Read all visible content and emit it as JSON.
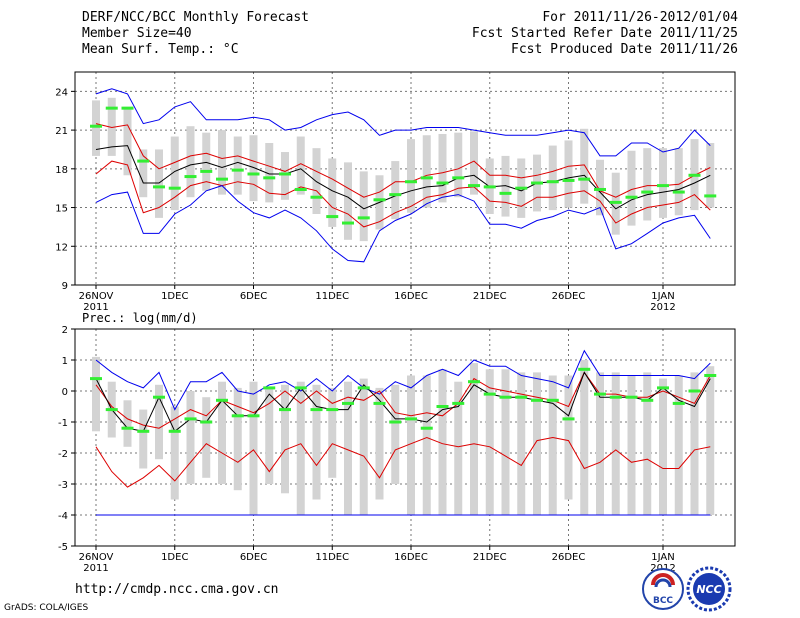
{
  "header": {
    "title": "DERF/NCC/BCC Monthly Forecast",
    "member_size": "Member Size=40",
    "variable": "Mean Surf. Temp.: °C",
    "period": "For 2011/11/26-2012/01/04",
    "fcst_started": "Fcst Started Refer Date 2011/11/25",
    "fcst_produced": "Fcst Produced Date 2011/11/26"
  },
  "footer": {
    "url": "http://cmdp.ncc.cma.gov.cn",
    "credit": "GrADS: COLA/IGES"
  },
  "logos": {
    "bcc_text": "BCC",
    "ncc_text": "NCC"
  },
  "colors": {
    "upper": "#0000ee",
    "ensemble": "#dd0000",
    "mean": "#000000",
    "box": "#d3d3d3",
    "obs": "#33ee33",
    "grid": "#777777"
  },
  "chart_data": [
    {
      "type": "line",
      "title": "Mean Surf. Temp.: °C",
      "ylim": [
        9,
        25.5
      ],
      "yticks": [
        9,
        12,
        15,
        18,
        21,
        24
      ],
      "xticks": [
        {
          "day": 0,
          "label": "26NOV",
          "sub": "2011"
        },
        {
          "day": 5,
          "label": "1DEC"
        },
        {
          "day": 10,
          "label": "6DEC"
        },
        {
          "day": 15,
          "label": "11DEC"
        },
        {
          "day": 20,
          "label": "16DEC"
        },
        {
          "day": 25,
          "label": "21DEC"
        },
        {
          "day": 30,
          "label": "26DEC"
        },
        {
          "day": 36,
          "label": "1JAN",
          "sub": "2012"
        }
      ],
      "days": 40,
      "series": [
        {
          "name": "max",
          "color": "#0000ee",
          "values": [
            23.8,
            24.2,
            23.8,
            21.5,
            21.8,
            22.8,
            23.2,
            21.8,
            21.8,
            21.8,
            22.0,
            21.8,
            21.0,
            21.2,
            21.8,
            22.2,
            22.4,
            21.8,
            20.6,
            21.0,
            21.0,
            21.2,
            21.2,
            21.2,
            21.0,
            20.8,
            20.6,
            20.6,
            20.6,
            20.8,
            21.0,
            20.8,
            19.0,
            19.0,
            20.0,
            20.0,
            19.3,
            19.6,
            21.0,
            19.8
          ]
        },
        {
          "name": "upper",
          "color": "#dd0000",
          "values": [
            21.5,
            21.2,
            21.4,
            19.0,
            18.0,
            18.5,
            19.0,
            19.2,
            18.8,
            19.0,
            18.6,
            18.2,
            17.8,
            18.4,
            17.8,
            17.2,
            16.5,
            15.8,
            16.2,
            17.0,
            17.0,
            17.5,
            17.7,
            18.0,
            18.6,
            17.5,
            17.5,
            17.3,
            17.5,
            17.8,
            18.2,
            18.3,
            16.3,
            15.8,
            16.4,
            16.7,
            16.7,
            16.8,
            17.5,
            18.1
          ]
        },
        {
          "name": "mean",
          "color": "#000000",
          "values": [
            19.5,
            19.7,
            19.8,
            16.9,
            16.9,
            17.8,
            18.3,
            18.5,
            18.1,
            18.5,
            18.1,
            17.6,
            17.6,
            18.0,
            17.0,
            16.3,
            15.8,
            14.9,
            15.4,
            15.9,
            16.3,
            16.6,
            16.7,
            17.3,
            17.5,
            16.6,
            16.7,
            16.3,
            16.9,
            17.0,
            17.3,
            17.5,
            16.2,
            14.9,
            15.6,
            16.0,
            16.2,
            16.4,
            16.9,
            17.5
          ]
        },
        {
          "name": "lower",
          "color": "#dd0000",
          "values": [
            17.6,
            18.6,
            18.3,
            14.6,
            15.0,
            15.8,
            16.7,
            17.0,
            16.7,
            17.0,
            16.8,
            16.1,
            16.0,
            16.6,
            16.3,
            15.0,
            14.5,
            13.5,
            13.9,
            14.6,
            15.1,
            15.8,
            16.0,
            16.5,
            16.6,
            15.5,
            15.4,
            15.1,
            15.8,
            15.8,
            16.1,
            16.3,
            15.5,
            13.8,
            14.5,
            15.0,
            15.2,
            15.4,
            16.0,
            14.8
          ]
        },
        {
          "name": "min",
          "color": "#0000ee",
          "values": [
            15.4,
            16.0,
            16.2,
            13.0,
            13.0,
            14.5,
            15.2,
            16.3,
            16.7,
            15.5,
            14.6,
            14.2,
            14.8,
            14.2,
            13.2,
            11.8,
            10.9,
            10.8,
            13.2,
            14.0,
            14.5,
            15.3,
            15.8,
            16.0,
            15.5,
            13.7,
            13.7,
            13.4,
            14.0,
            14.3,
            14.8,
            14.5,
            15.0,
            11.8,
            12.2,
            13.0,
            13.8,
            14.2,
            14.4,
            12.6
          ]
        }
      ],
      "box_low": [
        19.0,
        19.0,
        17.5,
        15.8,
        14.2,
        14.8,
        15.8,
        16.3,
        16.0,
        16.0,
        15.5,
        15.4,
        15.6,
        16.0,
        14.5,
        13.5,
        12.5,
        12.4,
        13.3,
        14.1,
        14.6,
        15.0,
        15.4,
        15.8,
        16.0,
        14.5,
        14.3,
        14.2,
        14.7,
        14.8,
        15.0,
        15.3,
        14.4,
        12.9,
        13.6,
        14.0,
        14.2,
        14.4,
        14.8,
        15.0
      ],
      "box_high": [
        23.3,
        23.5,
        22.8,
        19.5,
        19.5,
        20.5,
        21.3,
        20.8,
        21.0,
        20.5,
        20.6,
        20.0,
        19.3,
        20.5,
        19.6,
        18.8,
        18.5,
        17.8,
        17.5,
        18.6,
        20.3,
        20.6,
        20.7,
        20.8,
        20.9,
        18.8,
        19.0,
        18.8,
        19.1,
        19.8,
        20.2,
        21.1,
        18.7,
        17.7,
        19.4,
        19.6,
        19.6,
        19.6,
        20.3,
        20.0
      ],
      "observed": [
        21.3,
        22.7,
        22.7,
        18.6,
        16.6,
        16.5,
        17.4,
        17.8,
        17.2,
        17.9,
        17.6,
        17.3,
        17.6,
        16.4,
        15.8,
        14.3,
        13.8,
        14.2,
        15.6,
        16.0,
        17.0,
        17.3,
        16.9,
        17.3,
        16.7,
        16.6,
        16.1,
        16.5,
        16.9,
        17.0,
        17.1,
        17.2,
        16.4,
        15.4,
        15.8,
        16.2,
        16.7,
        16.2,
        17.5,
        15.9
      ]
    },
    {
      "type": "line",
      "title": "Prec.: log(mm/d)",
      "ylim": [
        -5,
        2
      ],
      "yticks": [
        -5,
        -4,
        -3,
        -2,
        -1,
        0,
        1,
        2
      ],
      "xticks": [
        {
          "day": 0,
          "label": "26NOV",
          "sub": "2011"
        },
        {
          "day": 5,
          "label": "1DEC"
        },
        {
          "day": 10,
          "label": "6DEC"
        },
        {
          "day": 15,
          "label": "11DEC"
        },
        {
          "day": 20,
          "label": "16DEC"
        },
        {
          "day": 25,
          "label": "21DEC"
        },
        {
          "day": 30,
          "label": "26DEC"
        },
        {
          "day": 36,
          "label": "1JAN",
          "sub": "2012"
        }
      ],
      "days": 40,
      "series": [
        {
          "name": "max",
          "color": "#0000ee",
          "values": [
            1.0,
            0.6,
            0.3,
            0.1,
            0.6,
            -0.6,
            0.3,
            0.3,
            0.6,
            0.0,
            -0.1,
            0.2,
            0.3,
            0.0,
            0.4,
            0.0,
            0.5,
            0.1,
            -0.1,
            0.3,
            0.1,
            0.5,
            0.7,
            0.5,
            1.0,
            0.8,
            0.8,
            0.5,
            0.4,
            0.3,
            0.1,
            1.3,
            0.5,
            0.5,
            0.5,
            0.5,
            0.5,
            0.5,
            0.4,
            0.9
          ]
        },
        {
          "name": "upper",
          "color": "#dd0000",
          "values": [
            0.2,
            -0.5,
            -0.9,
            -1.1,
            -1.2,
            -0.9,
            -0.6,
            -0.8,
            -0.3,
            -0.5,
            -0.7,
            -0.4,
            0.0,
            -0.4,
            0.0,
            -0.4,
            -0.2,
            -0.3,
            0.0,
            -0.7,
            -0.8,
            -0.7,
            -0.8,
            -0.4,
            0.4,
            0.1,
            0.0,
            -0.1,
            -0.2,
            -0.3,
            -0.5,
            0.6,
            -0.1,
            -0.1,
            -0.2,
            -0.2,
            0.0,
            -0.2,
            -0.4,
            0.5
          ]
        },
        {
          "name": "mean",
          "color": "#000000",
          "values": [
            0.4,
            -0.6,
            -1.2,
            -1.3,
            -0.2,
            -1.3,
            -0.9,
            -1.0,
            -0.3,
            -0.8,
            -0.8,
            -0.1,
            -0.6,
            0.1,
            -0.5,
            -0.6,
            -0.6,
            0.2,
            -0.3,
            -0.9,
            -0.9,
            -1.0,
            -0.6,
            -0.5,
            0.2,
            -0.1,
            -0.2,
            -0.2,
            -0.3,
            -0.4,
            -0.8,
            0.6,
            -0.2,
            -0.2,
            -0.2,
            -0.3,
            0.1,
            -0.3,
            -0.5,
            0.4
          ]
        },
        {
          "name": "lower",
          "color": "#dd0000",
          "values": [
            -1.8,
            -2.6,
            -3.1,
            -2.8,
            -2.4,
            -2.9,
            -2.3,
            -1.7,
            -2.0,
            -2.3,
            -1.9,
            -2.6,
            -1.9,
            -1.7,
            -2.4,
            -1.7,
            -1.9,
            -2.1,
            -2.8,
            -1.9,
            -1.7,
            -1.5,
            -1.7,
            -1.8,
            -1.7,
            -1.8,
            -2.1,
            -2.4,
            -1.6,
            -1.5,
            -1.6,
            -2.5,
            -2.3,
            -1.9,
            -2.3,
            -2.2,
            -2.5,
            -2.5,
            -1.9,
            -1.8
          ]
        },
        {
          "name": "min",
          "color": "#0000ee",
          "values": [
            -4.0,
            -4.0,
            -4.0,
            -4.0,
            -4.0,
            -4.0,
            -4.0,
            -4.0,
            -4.0,
            -4.0,
            -4.0,
            -4.0,
            -4.0,
            -4.0,
            -4.0,
            -4.0,
            -4.0,
            -4.0,
            -4.0,
            -4.0,
            -4.0,
            -4.0,
            -4.0,
            -4.0,
            -4.0,
            -4.0,
            -4.0,
            -4.0,
            -4.0,
            -4.0,
            -4.0,
            -4.0,
            -4.0,
            -4.0,
            -4.0,
            -4.0,
            -4.0,
            -4.0,
            -4.0,
            -4.0
          ]
        }
      ],
      "box_low": [
        -1.3,
        -1.5,
        -1.8,
        -2.5,
        -2.2,
        -3.5,
        -3.0,
        -2.8,
        -3.0,
        -3.2,
        -4.0,
        -3.0,
        -3.3,
        -4.0,
        -3.5,
        -2.8,
        -4.0,
        -4.0,
        -3.5,
        -3.0,
        -4.0,
        -4.0,
        -4.0,
        -4.0,
        -4.0,
        -4.0,
        -4.0,
        -4.0,
        -4.0,
        -4.0,
        -3.5,
        -4.0,
        -4.0,
        -4.0,
        -4.0,
        -4.0,
        -4.0,
        -4.0,
        -4.0,
        -4.0
      ],
      "box_high": [
        1.1,
        0.3,
        -0.3,
        -0.6,
        0.2,
        -0.5,
        0.0,
        -0.2,
        0.3,
        0.1,
        0.3,
        0.1,
        0.2,
        0.3,
        0.2,
        0.1,
        0.3,
        0.4,
        0.1,
        0.2,
        0.5,
        0.5,
        0.7,
        0.3,
        0.9,
        0.7,
        0.7,
        0.6,
        0.6,
        0.5,
        0.5,
        1.0,
        0.6,
        0.6,
        0.5,
        0.6,
        0.4,
        0.5,
        0.6,
        0.8
      ],
      "observed": [
        0.4,
        -0.6,
        -1.2,
        -1.3,
        -0.2,
        -1.3,
        -0.9,
        -1.0,
        -0.3,
        -0.8,
        -0.8,
        0.1,
        -0.6,
        0.1,
        -0.6,
        -0.6,
        -0.4,
        0.1,
        -0.4,
        -1.0,
        -0.9,
        -1.2,
        -0.5,
        -0.4,
        0.3,
        -0.1,
        -0.2,
        -0.2,
        -0.3,
        -0.3,
        -0.9,
        0.7,
        -0.1,
        -0.2,
        -0.2,
        -0.3,
        0.1,
        -0.4,
        0.0,
        0.5
      ]
    }
  ]
}
